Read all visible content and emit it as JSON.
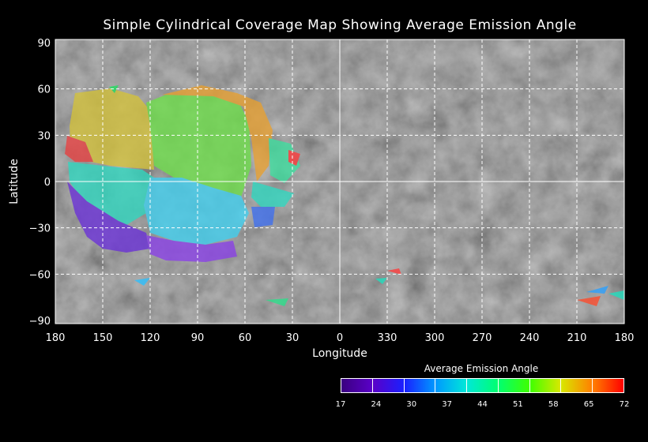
{
  "title": "Simple Cylindrical Coverage Map Showing Average Emission Angle",
  "xlabel": "Longitude",
  "ylabel": "Latitude",
  "x_ticks": [
    "180",
    "150",
    "120",
    "90",
    "60",
    "30",
    "0",
    "330",
    "300",
    "270",
    "240",
    "210",
    "180"
  ],
  "y_ticks": [
    "90",
    "60",
    "30",
    "0",
    "−30",
    "−60",
    "−90"
  ],
  "legend": {
    "title": "Average Emission Angle",
    "labels": [
      "17",
      "24",
      "30",
      "37",
      "44",
      "51",
      "58",
      "65",
      "72"
    ],
    "colors": [
      "#3a0080",
      "#5a00c8",
      "#1a20ff",
      "#0098ff",
      "#00e8d8",
      "#00ff70",
      "#40ff00",
      "#d8e800",
      "#ff8000",
      "#ff0000"
    ]
  },
  "chart_data": {
    "type": "map",
    "projection": "simple cylindrical",
    "x_range": [
      180,
      -180
    ],
    "y_range": [
      -90,
      90
    ],
    "grid": true,
    "regions": [
      {
        "name": "yellow-nw",
        "color": "#d4c23a",
        "emission": 58
      },
      {
        "name": "green-north-center",
        "color": "#5fd84a",
        "emission": 51
      },
      {
        "name": "orange-north",
        "color": "#e8a030",
        "emission": 62
      },
      {
        "name": "red-west",
        "color": "#e84040",
        "emission": 70
      },
      {
        "name": "teal-west",
        "color": "#2fd8c0",
        "emission": 44
      },
      {
        "name": "cyan-center",
        "color": "#40d0f0",
        "emission": 38
      },
      {
        "name": "blue-center",
        "color": "#4070f0",
        "emission": 30
      },
      {
        "name": "purple-south",
        "color": "#6a30d8",
        "emission": 22
      },
      {
        "name": "violet-south",
        "color": "#8a40e8",
        "emission": 25
      }
    ]
  }
}
